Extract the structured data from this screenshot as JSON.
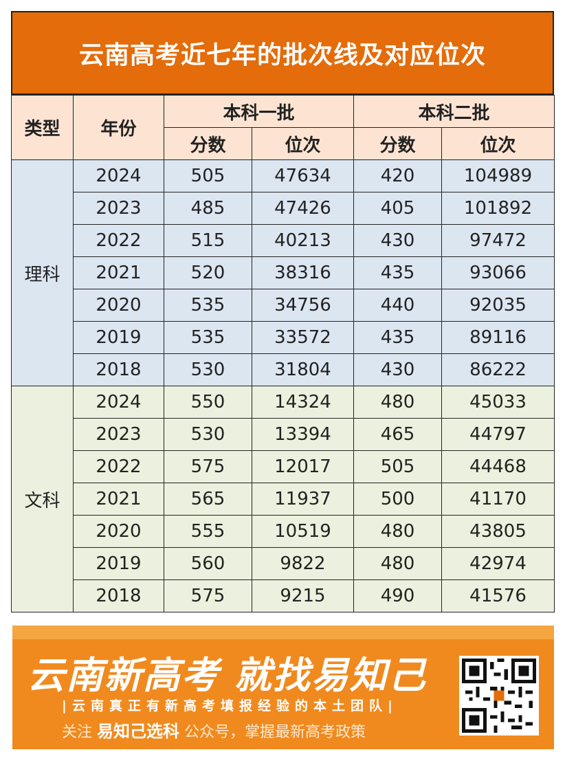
{
  "title": "云南高考近七年的批次线及对应位次",
  "headers": {
    "type": "类型",
    "year": "年份",
    "batch1": "本科一批",
    "batch2": "本科二批",
    "score": "分数",
    "rank": "位次"
  },
  "groups": [
    {
      "type": "理科",
      "rows": [
        {
          "year": "2024",
          "s1": "505",
          "r1": "47634",
          "s2": "420",
          "r2": "104989"
        },
        {
          "year": "2023",
          "s1": "485",
          "r1": "47426",
          "s2": "405",
          "r2": "101892"
        },
        {
          "year": "2022",
          "s1": "515",
          "r1": "40213",
          "s2": "430",
          "r2": "97472"
        },
        {
          "year": "2021",
          "s1": "520",
          "r1": "38316",
          "s2": "435",
          "r2": "93066"
        },
        {
          "year": "2020",
          "s1": "535",
          "r1": "34756",
          "s2": "440",
          "r2": "92035"
        },
        {
          "year": "2019",
          "s1": "535",
          "r1": "33572",
          "s2": "435",
          "r2": "89116"
        },
        {
          "year": "2018",
          "s1": "530",
          "r1": "31804",
          "s2": "430",
          "r2": "86222"
        }
      ]
    },
    {
      "type": "文科",
      "rows": [
        {
          "year": "2024",
          "s1": "550",
          "r1": "14324",
          "s2": "480",
          "r2": "45033"
        },
        {
          "year": "2023",
          "s1": "530",
          "r1": "13394",
          "s2": "465",
          "r2": "44797"
        },
        {
          "year": "2022",
          "s1": "575",
          "r1": "12017",
          "s2": "505",
          "r2": "44468"
        },
        {
          "year": "2021",
          "s1": "565",
          "r1": "11937",
          "s2": "500",
          "r2": "41170"
        },
        {
          "year": "2020",
          "s1": "555",
          "r1": "10519",
          "s2": "480",
          "r2": "43805"
        },
        {
          "year": "2019",
          "s1": "560",
          "r1": "9822",
          "s2": "480",
          "r2": "42974"
        },
        {
          "year": "2018",
          "s1": "575",
          "r1": "9215",
          "s2": "490",
          "r2": "41576"
        }
      ]
    }
  ],
  "banner": {
    "headline": "云南新高考  就找易知己",
    "subline": "|云南真正有新高考填报经验的本土团队|",
    "follow_prefix": "关注",
    "follow_brand": "易知己选科",
    "follow_suffix": "公众号，掌握最新高考政策"
  },
  "colors": {
    "title_bg": "#e46c0a",
    "header_bg": "#fde4d2",
    "science_bg": "#dce6f1",
    "liberal_bg": "#ebf1de",
    "banner_bg": "#f08a1e"
  },
  "icons": {
    "qr": "qr-code-icon"
  }
}
